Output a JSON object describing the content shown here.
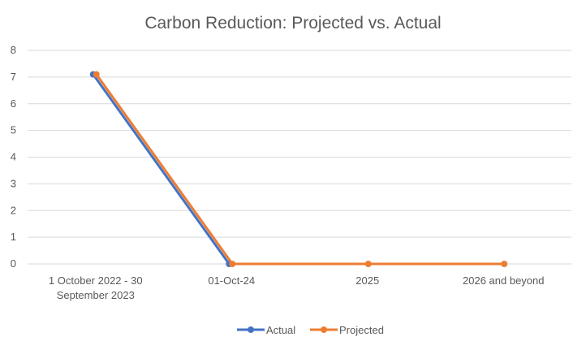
{
  "chart_data": {
    "type": "line",
    "title": "Carbon Reduction: Projected vs. Actual",
    "xlabel": "",
    "ylabel": "",
    "categories": [
      [
        "1 October 2022 - 30",
        "September 2023"
      ],
      [
        "01-Oct-24"
      ],
      [
        "2025"
      ],
      [
        "2026 and beyond"
      ]
    ],
    "ylim": [
      0,
      8
    ],
    "yticks": [
      "0",
      "1",
      "2",
      "3",
      "4",
      "5",
      "6",
      "7",
      "8"
    ],
    "grid": true,
    "legend_position": "bottom",
    "series": [
      {
        "name": "Actual",
        "color": "#4472C4",
        "values": [
          7.1,
          0,
          null,
          null
        ]
      },
      {
        "name": "Projected",
        "color": "#ED7D31",
        "values": [
          7.1,
          0,
          0,
          0
        ]
      }
    ]
  }
}
